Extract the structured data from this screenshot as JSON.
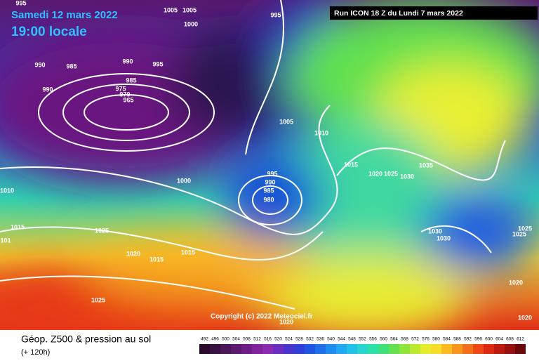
{
  "header": {
    "date": "Samedi 12 mars 2022",
    "time": "19:00 locale",
    "run": "Run ICON 18 Z du Lundi 7 mars 2022"
  },
  "copyright": "Copyright (c) 2022 Meteociel.fr",
  "footer": {
    "title": "Géop. Z500 & pression au sol",
    "lead": "(+ 120h)"
  },
  "isobar_labels": [
    "995",
    "1005",
    "1005",
    "1000",
    "995",
    "990",
    "985",
    "990",
    "995",
    "990",
    "985",
    "975",
    "970",
    "965",
    "1005",
    "1010",
    "1015",
    "1020",
    "1025",
    "1030",
    "1035",
    "995",
    "990",
    "985",
    "980",
    "1000",
    "1010",
    "1015",
    "101",
    "1025",
    "1020",
    "1015",
    "1015",
    "1030",
    "1030",
    "1025",
    "1025",
    "1020",
    "1025",
    "1020",
    "1020"
  ],
  "colorbar": {
    "ticks": [
      492,
      496,
      500,
      504,
      508,
      512,
      516,
      520,
      524,
      528,
      532,
      536,
      540,
      544,
      548,
      552,
      556,
      560,
      564,
      568,
      572,
      576,
      580,
      584,
      588,
      592,
      596,
      600,
      604,
      608,
      612
    ],
    "colors": [
      "#2a0a2a",
      "#3a1040",
      "#4b1657",
      "#5c1a6e",
      "#6e1e86",
      "#7f249c",
      "#8a2cb0",
      "#6b2ec0",
      "#4a34cc",
      "#2f3fd8",
      "#1f55e0",
      "#1f70e8",
      "#1f8cef",
      "#20a8f0",
      "#22c2e8",
      "#26d6cf",
      "#2de0a8",
      "#3fe07a",
      "#62e050",
      "#8fe43a",
      "#bde830",
      "#e4ec2c",
      "#f7dc28",
      "#fabb22",
      "#f8961c",
      "#f47018",
      "#ee4814",
      "#dc2a12",
      "#bc1a10",
      "#96100e",
      "#6a080a"
    ]
  }
}
